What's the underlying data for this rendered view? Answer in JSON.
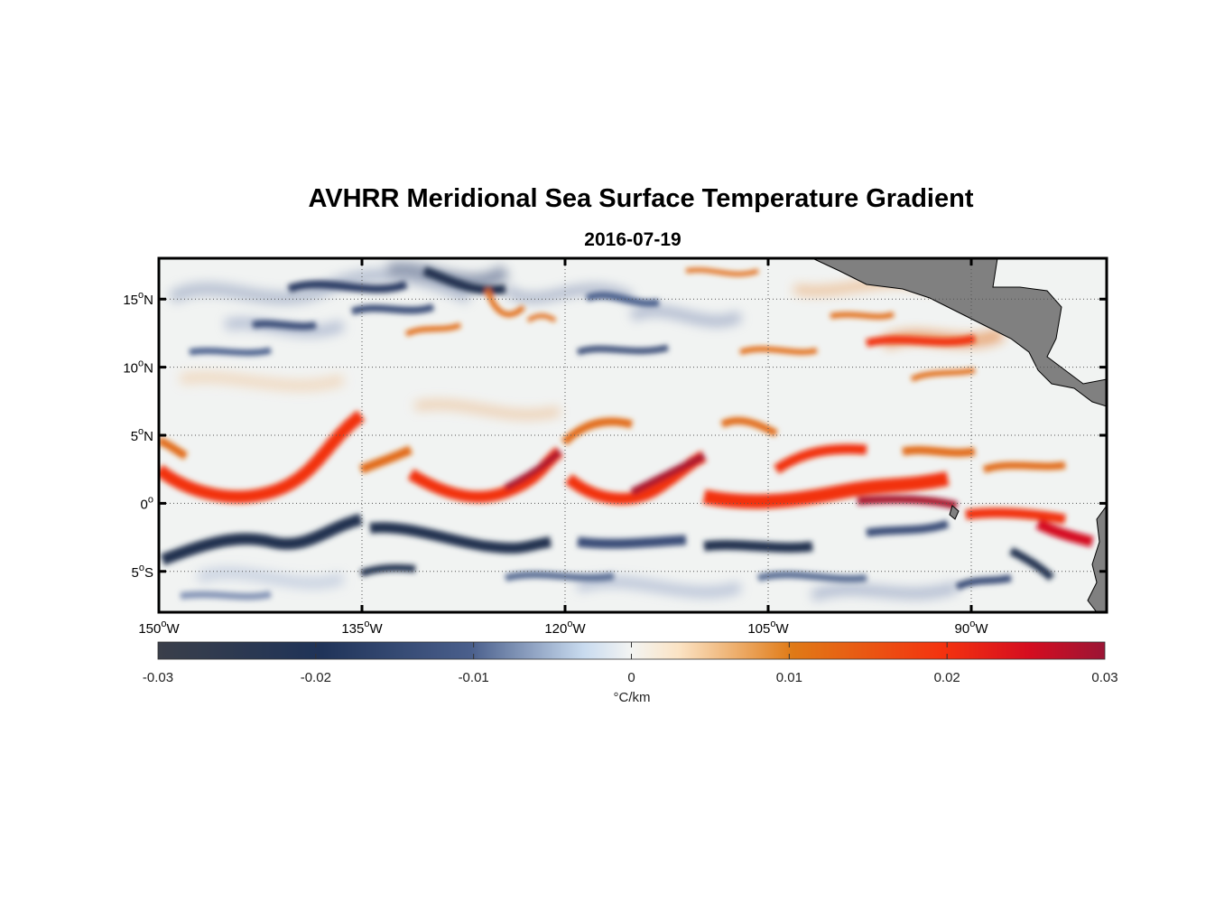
{
  "title": "AVHRR Meridional Sea Surface Temperature Gradient",
  "subtitle": "2016-07-19",
  "lat_ticks": [
    {
      "deg": "15",
      "hemi": "N",
      "value": 15
    },
    {
      "deg": "10",
      "hemi": "N",
      "value": 10
    },
    {
      "deg": "5",
      "hemi": "N",
      "value": 5
    },
    {
      "deg": "0",
      "hemi": "",
      "value": 0
    },
    {
      "deg": "5",
      "hemi": "S",
      "value": -5
    }
  ],
  "lon_ticks": [
    {
      "deg": "150",
      "hemi": "W",
      "value": -150
    },
    {
      "deg": "135",
      "hemi": "W",
      "value": -135
    },
    {
      "deg": "120",
      "hemi": "W",
      "value": -120
    },
    {
      "deg": "105",
      "hemi": "W",
      "value": -105
    },
    {
      "deg": "90",
      "hemi": "W",
      "value": -90
    }
  ],
  "map_extent": {
    "lon_min": -150,
    "lon_max": -80,
    "lat_min": -8,
    "lat_max": 18
  },
  "colorbar": {
    "ticks": [
      "-0.03",
      "-0.02",
      "-0.01",
      "0",
      "0.01",
      "0.02",
      "0.03"
    ],
    "label": "°C/km",
    "range": [
      -0.03,
      0.03
    ],
    "colors": [
      "#3a3f4a",
      "#1f3358",
      "#4a5f8c",
      "#c9dbef",
      "#f3f4f2",
      "#fbe3c4",
      "#e07a16",
      "#f4320f",
      "#d50d20",
      "#9b1535"
    ]
  },
  "land_color": "#808080",
  "front_colors": {
    "strong_warm": "#a8192f",
    "warm": "#f2300e",
    "weak_warm": "#e26a12",
    "cold": "#243150",
    "weak_cold": "#5c6f96"
  }
}
